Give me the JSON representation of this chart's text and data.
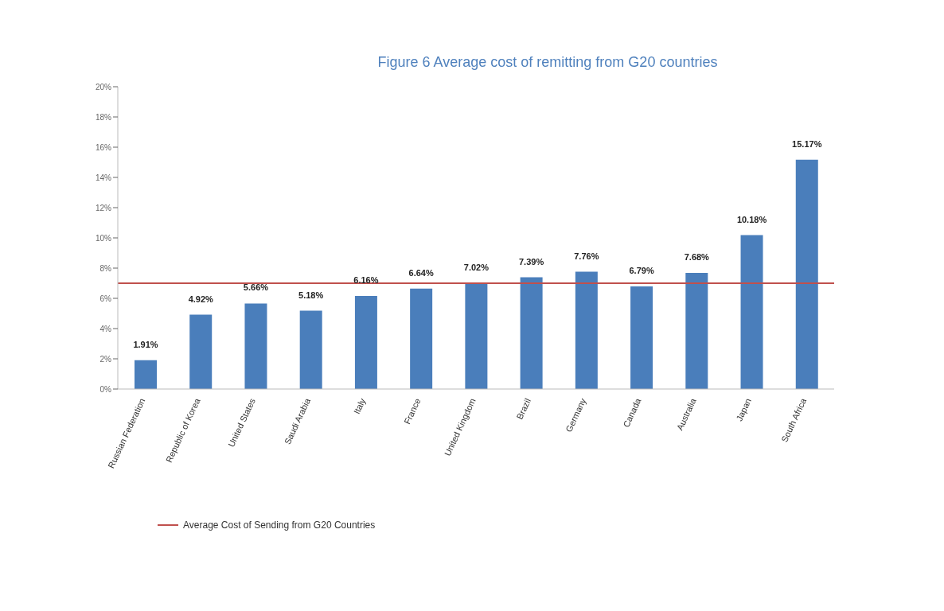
{
  "chart_data": {
    "type": "bar",
    "title": "Figure 6 Average cost of remitting from G20 countries",
    "categories": [
      "Russian Federation",
      "Republic of Korea",
      "United States",
      "Saudi Arabia",
      "Italy",
      "France",
      "United Kingdom",
      "Brazil",
      "Germany",
      "Canada",
      "Australia",
      "Japan",
      "South Africa"
    ],
    "values": [
      1.91,
      4.92,
      5.66,
      5.18,
      6.16,
      6.64,
      7.02,
      7.39,
      7.76,
      6.79,
      7.68,
      10.18,
      15.17
    ],
    "value_labels": [
      "1.91%",
      "4.92%",
      "5.66%",
      "5.18%",
      "6.16%",
      "6.64%",
      "7.02%",
      "7.39%",
      "7.76%",
      "6.79%",
      "7.68%",
      "10.18%",
      "15.17%"
    ],
    "color": "#4a7ebb",
    "ylim": [
      0,
      20
    ],
    "yticks": [
      {
        "value": 0,
        "label": "0%"
      },
      {
        "value": 2,
        "label": "2%"
      },
      {
        "value": 4,
        "label": "4%"
      },
      {
        "value": 6,
        "label": "6%"
      },
      {
        "value": 8,
        "label": "8%"
      },
      {
        "value": 10,
        "label": "10%"
      },
      {
        "value": 12,
        "label": "12%"
      },
      {
        "value": 14,
        "label": "14%"
      },
      {
        "value": 16,
        "label": "16%"
      },
      {
        "value": 18,
        "label": "18%"
      },
      {
        "value": 20,
        "label": "20%"
      }
    ],
    "ref_lines": [
      {
        "axis": "y",
        "value": 7.0,
        "label": "Average Cost of Sending from G20 Countries",
        "color": "#c0504d"
      }
    ],
    "grid": false,
    "legend": "bottom left"
  }
}
